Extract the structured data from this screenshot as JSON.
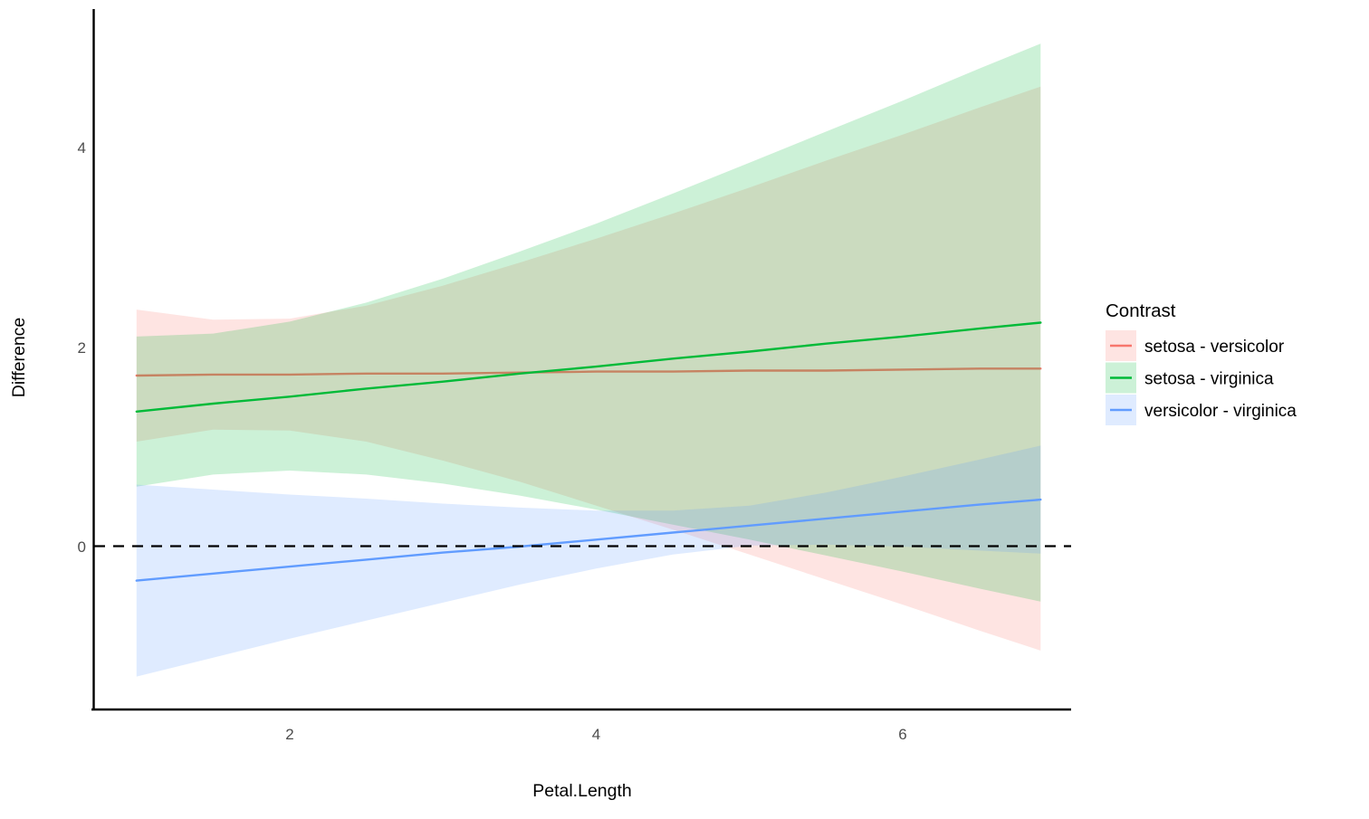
{
  "figure": {
    "background": "#ffffff",
    "xlabel": "Petal.Length",
    "ylabel": "Difference",
    "legend": {
      "title": "Contrast",
      "entries": [
        {
          "label": "setosa - versicolor",
          "color": "#F8766D"
        },
        {
          "label": "setosa - virginica",
          "color": "#00BA38"
        },
        {
          "label": "versicolor - virginica",
          "color": "#619CFF"
        }
      ]
    }
  },
  "chart_data": {
    "type": "line",
    "title": "",
    "xlabel": "Petal.Length",
    "ylabel": "Difference",
    "legend_title": "Contrast",
    "legend_position": "right",
    "grid": false,
    "xlim": [
      0.72,
      7.1
    ],
    "ylim": [
      -1.62,
      5.4
    ],
    "x_ticks": [
      2,
      4,
      6
    ],
    "y_ticks": [
      0,
      2,
      4
    ],
    "reference_line": {
      "y": 0,
      "style": "dashed",
      "color": "#000000"
    },
    "ribbon_opacity": 0.2,
    "x": [
      1,
      1.5,
      2,
      2.5,
      3,
      3.5,
      4,
      4.5,
      5,
      5.5,
      6,
      6.5,
      6.9
    ],
    "series": [
      {
        "name": "setosa - versicolor",
        "color": "#F8766D",
        "values": [
          1.71,
          1.72,
          1.72,
          1.73,
          1.73,
          1.74,
          1.75,
          1.75,
          1.76,
          1.76,
          1.77,
          1.78,
          1.78
        ],
        "lower": [
          1.05,
          1.17,
          1.16,
          1.05,
          0.86,
          0.65,
          0.41,
          0.17,
          -0.08,
          -0.33,
          -0.58,
          -0.84,
          -1.04
        ],
        "upper": [
          2.37,
          2.27,
          2.28,
          2.41,
          2.61,
          2.84,
          3.08,
          3.33,
          3.59,
          3.86,
          4.12,
          4.39,
          4.6
        ]
      },
      {
        "name": "setosa - virginica",
        "color": "#00BA38",
        "values": [
          1.35,
          1.43,
          1.5,
          1.58,
          1.65,
          1.73,
          1.8,
          1.88,
          1.95,
          2.03,
          2.1,
          2.18,
          2.24
        ],
        "lower": [
          0.6,
          0.72,
          0.76,
          0.72,
          0.63,
          0.51,
          0.37,
          0.22,
          0.07,
          -0.09,
          -0.25,
          -0.42,
          -0.55
        ],
        "upper": [
          2.1,
          2.13,
          2.25,
          2.44,
          2.68,
          2.95,
          3.23,
          3.53,
          3.84,
          4.15,
          4.46,
          4.78,
          5.03
        ]
      },
      {
        "name": "versicolor - virginica",
        "color": "#619CFF",
        "values": [
          -0.34,
          -0.27,
          -0.2,
          -0.13,
          -0.06,
          0.0,
          0.07,
          0.14,
          0.21,
          0.28,
          0.35,
          0.42,
          0.47
        ],
        "lower": [
          -1.3,
          -1.11,
          -0.92,
          -0.74,
          -0.56,
          -0.38,
          -0.22,
          -0.08,
          0.01,
          0.02,
          0.0,
          -0.04,
          -0.07
        ],
        "upper": [
          0.62,
          0.57,
          0.52,
          0.48,
          0.43,
          0.39,
          0.36,
          0.36,
          0.41,
          0.54,
          0.7,
          0.87,
          1.01
        ]
      }
    ]
  }
}
